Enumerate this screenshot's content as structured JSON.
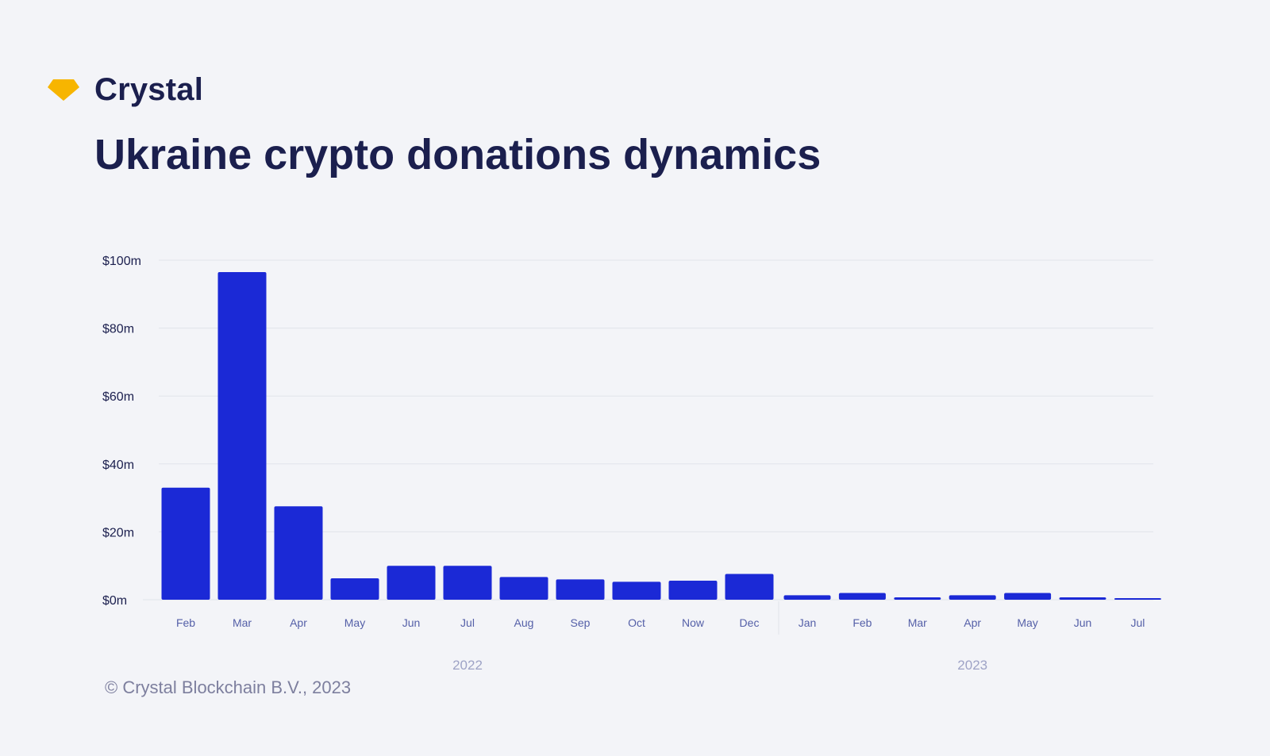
{
  "brand": {
    "name": "Crystal",
    "icon": "crystal-gem-icon",
    "icon_color": "#f7b500"
  },
  "title": "Ukraine crypto donations dynamics",
  "footer": "© Crystal Blockchain B.V., 2023",
  "colors": {
    "bar": "#1b29d6",
    "text_dark": "#1b1f4e",
    "tick": "#5560a8",
    "year": "#9ea3c6",
    "grid": "#e1e3ea"
  },
  "chart_data": {
    "type": "bar",
    "title": "Ukraine crypto donations dynamics",
    "xlabel": "",
    "ylabel": "",
    "ylim": [
      0,
      100
    ],
    "y_unit": "$m",
    "y_ticks": [
      "$0m",
      "$20m",
      "$40m",
      "$60m",
      "$80m",
      "$100m"
    ],
    "y_tick_values": [
      0,
      20,
      40,
      60,
      80,
      100
    ],
    "grid": true,
    "categories": [
      "Feb",
      "Mar",
      "Apr",
      "May",
      "Jun",
      "Jul",
      "Aug",
      "Sep",
      "Oct",
      "Now",
      "Dec",
      "Jan",
      "Feb",
      "Mar",
      "Apr",
      "May",
      "Jun",
      "Jul"
    ],
    "values": [
      33,
      96.5,
      27.5,
      6.3,
      10,
      10,
      6.7,
      6,
      5.3,
      5.6,
      7.6,
      1.3,
      2,
      0.7,
      1.3,
      2,
      0.7,
      0.4
    ],
    "groups": [
      {
        "label": "2022",
        "count": 11
      },
      {
        "label": "2023",
        "count": 7
      }
    ]
  }
}
